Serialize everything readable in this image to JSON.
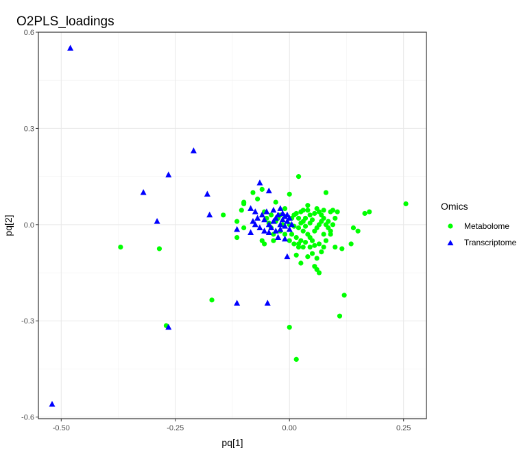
{
  "chart_data": {
    "type": "scatter",
    "title": "O2PLS_loadings",
    "xlabel": "pq[1]",
    "ylabel": "pq[2]",
    "xlim": [
      -0.55,
      0.3
    ],
    "ylim": [
      -0.605,
      0.6
    ],
    "x_ticks": [
      -0.5,
      -0.25,
      0.0,
      0.25
    ],
    "x_tick_labels": [
      "-0.50",
      "-0.25",
      "0.00",
      "0.25"
    ],
    "y_ticks": [
      -0.6,
      -0.3,
      0.0,
      0.3,
      0.6
    ],
    "y_tick_labels": [
      "-0.6",
      "-0.3",
      "0.0",
      "0.3",
      "0.6"
    ],
    "grid": true,
    "legend": {
      "title": "Omics",
      "position": "right"
    },
    "series": [
      {
        "name": "Metabolome",
        "marker": "circle",
        "color": "#00ff00",
        "points": [
          [
            -0.37,
            -0.07
          ],
          [
            -0.285,
            -0.075
          ],
          [
            -0.27,
            -0.315
          ],
          [
            -0.17,
            -0.235
          ],
          [
            0.255,
            0.065
          ],
          [
            0.175,
            0.04
          ],
          [
            0.165,
            0.035
          ],
          [
            0.14,
            -0.01
          ],
          [
            0.15,
            -0.02
          ],
          [
            0.135,
            -0.06
          ],
          [
            0.12,
            -0.22
          ],
          [
            0.11,
            -0.285
          ],
          [
            0.115,
            -0.075
          ],
          [
            0.1,
            -0.07
          ],
          [
            0.08,
            0.1
          ],
          [
            0.02,
            0.15
          ],
          [
            0.0,
            0.095
          ],
          [
            -0.03,
            0.07
          ],
          [
            -0.04,
            0.03
          ],
          [
            -0.08,
            0.1
          ],
          [
            -0.07,
            0.08
          ],
          [
            -0.1,
            0.07
          ],
          [
            -0.1,
            0.065
          ],
          [
            -0.105,
            0.045
          ],
          [
            -0.145,
            0.03
          ],
          [
            -0.115,
            0.01
          ],
          [
            -0.115,
            -0.04
          ],
          [
            -0.1,
            -0.01
          ],
          [
            -0.06,
            0.11
          ],
          [
            -0.055,
            0.04
          ],
          [
            -0.05,
            0.02
          ],
          [
            -0.06,
            -0.05
          ],
          [
            -0.055,
            -0.06
          ],
          [
            -0.035,
            -0.05
          ],
          [
            0.0,
            -0.32
          ],
          [
            0.015,
            -0.42
          ],
          [
            0.02,
            -0.06
          ],
          [
            0.02,
            -0.07
          ],
          [
            0.015,
            -0.095
          ],
          [
            0.025,
            -0.12
          ],
          [
            0.03,
            -0.07
          ],
          [
            0.04,
            -0.1
          ],
          [
            0.05,
            -0.09
          ],
          [
            0.055,
            -0.13
          ],
          [
            0.06,
            -0.14
          ],
          [
            0.065,
            -0.15
          ],
          [
            0.06,
            -0.105
          ],
          [
            0.07,
            -0.085
          ],
          [
            0.08,
            -0.05
          ],
          [
            0.075,
            -0.03
          ],
          [
            0.09,
            -0.02
          ],
          [
            0.095,
            0.0
          ],
          [
            0.085,
            0.01
          ],
          [
            0.1,
            0.02
          ],
          [
            0.105,
            0.04
          ],
          [
            0.095,
            0.045
          ],
          [
            0.09,
            0.04
          ],
          [
            0.075,
            0.045
          ],
          [
            0.065,
            0.04
          ],
          [
            0.055,
            0.035
          ],
          [
            0.045,
            0.03
          ],
          [
            0.04,
            0.06
          ],
          [
            0.035,
            0.02
          ],
          [
            0.03,
            0.01
          ],
          [
            0.025,
            0.005
          ],
          [
            0.02,
            -0.01
          ],
          [
            0.03,
            -0.02
          ],
          [
            0.04,
            -0.03
          ],
          [
            0.045,
            -0.04
          ],
          [
            0.05,
            -0.05
          ],
          [
            0.055,
            -0.02
          ],
          [
            0.06,
            -0.01
          ],
          [
            0.065,
            0.0
          ],
          [
            0.07,
            0.01
          ],
          [
            0.075,
            0.02
          ],
          [
            0.08,
            0.0
          ],
          [
            0.085,
            -0.01
          ],
          [
            0.09,
            -0.03
          ],
          [
            0.05,
            0.015
          ],
          [
            0.045,
            0.005
          ],
          [
            0.035,
            -0.005
          ],
          [
            0.04,
            0.045
          ],
          [
            0.06,
            0.05
          ],
          [
            0.07,
            0.03
          ],
          [
            0.015,
            0.035
          ],
          [
            0.01,
            0.03
          ],
          [
            0.005,
            0.02
          ],
          [
            0.02,
            0.02
          ],
          [
            0.025,
            0.04
          ],
          [
            0.03,
            0.045
          ],
          [
            0.01,
            -0.005
          ],
          [
            0.005,
            -0.03
          ],
          [
            0.015,
            -0.04
          ],
          [
            0.025,
            -0.05
          ],
          [
            0.035,
            -0.055
          ],
          [
            0.045,
            -0.07
          ],
          [
            0.055,
            -0.065
          ],
          [
            0.065,
            -0.06
          ],
          [
            0.075,
            -0.07
          ],
          [
            0.01,
            -0.06
          ],
          [
            0.0,
            -0.05
          ],
          [
            -0.01,
            -0.03
          ],
          [
            -0.02,
            -0.02
          ],
          [
            -0.015,
            0.0
          ],
          [
            -0.03,
            0.01
          ],
          [
            -0.02,
            0.03
          ],
          [
            -0.01,
            0.05
          ],
          [
            -0.025,
            0.02
          ],
          [
            -0.04,
            -0.01
          ],
          [
            -0.045,
            0.005
          ],
          [
            -0.035,
            -0.03
          ],
          [
            0.0,
            0.0
          ]
        ]
      },
      {
        "name": "Transcriptome",
        "marker": "triangle",
        "color": "#0000ff",
        "points": [
          [
            -0.48,
            0.55
          ],
          [
            -0.52,
            -0.56
          ],
          [
            -0.265,
            -0.32
          ],
          [
            -0.21,
            0.23
          ],
          [
            -0.265,
            0.155
          ],
          [
            -0.32,
            0.1
          ],
          [
            -0.29,
            0.01
          ],
          [
            -0.18,
            0.095
          ],
          [
            -0.175,
            0.03
          ],
          [
            -0.115,
            -0.245
          ],
          [
            -0.048,
            -0.245
          ],
          [
            -0.115,
            -0.015
          ],
          [
            -0.065,
            0.13
          ],
          [
            -0.045,
            0.105
          ],
          [
            -0.085,
            0.05
          ],
          [
            -0.075,
            0.04
          ],
          [
            -0.06,
            0.03
          ],
          [
            -0.07,
            0.02
          ],
          [
            -0.08,
            0.01
          ],
          [
            -0.085,
            -0.025
          ],
          [
            -0.075,
            0.0
          ],
          [
            -0.065,
            -0.01
          ],
          [
            -0.055,
            -0.02
          ],
          [
            -0.045,
            0.0
          ],
          [
            -0.04,
            -0.01
          ],
          [
            -0.035,
            0.01
          ],
          [
            -0.03,
            0.02
          ],
          [
            -0.025,
            0.03
          ],
          [
            -0.02,
            0.0
          ],
          [
            -0.015,
            0.015
          ],
          [
            -0.01,
            0.025
          ],
          [
            -0.005,
            0.01
          ],
          [
            0.0,
            0.02
          ],
          [
            0.005,
            0.0
          ],
          [
            -0.01,
            -0.005
          ],
          [
            -0.005,
            0.03
          ],
          [
            -0.015,
            0.035
          ],
          [
            -0.02,
            -0.015
          ],
          [
            -0.03,
            -0.02
          ],
          [
            -0.045,
            -0.025
          ],
          [
            -0.025,
            -0.04
          ],
          [
            -0.01,
            -0.045
          ],
          [
            -0.005,
            -0.1
          ],
          [
            0.0,
            -0.015
          ],
          [
            -0.035,
            0.045
          ],
          [
            -0.02,
            0.05
          ],
          [
            -0.05,
            0.04
          ],
          [
            -0.055,
            0.015
          ]
        ]
      }
    ]
  }
}
